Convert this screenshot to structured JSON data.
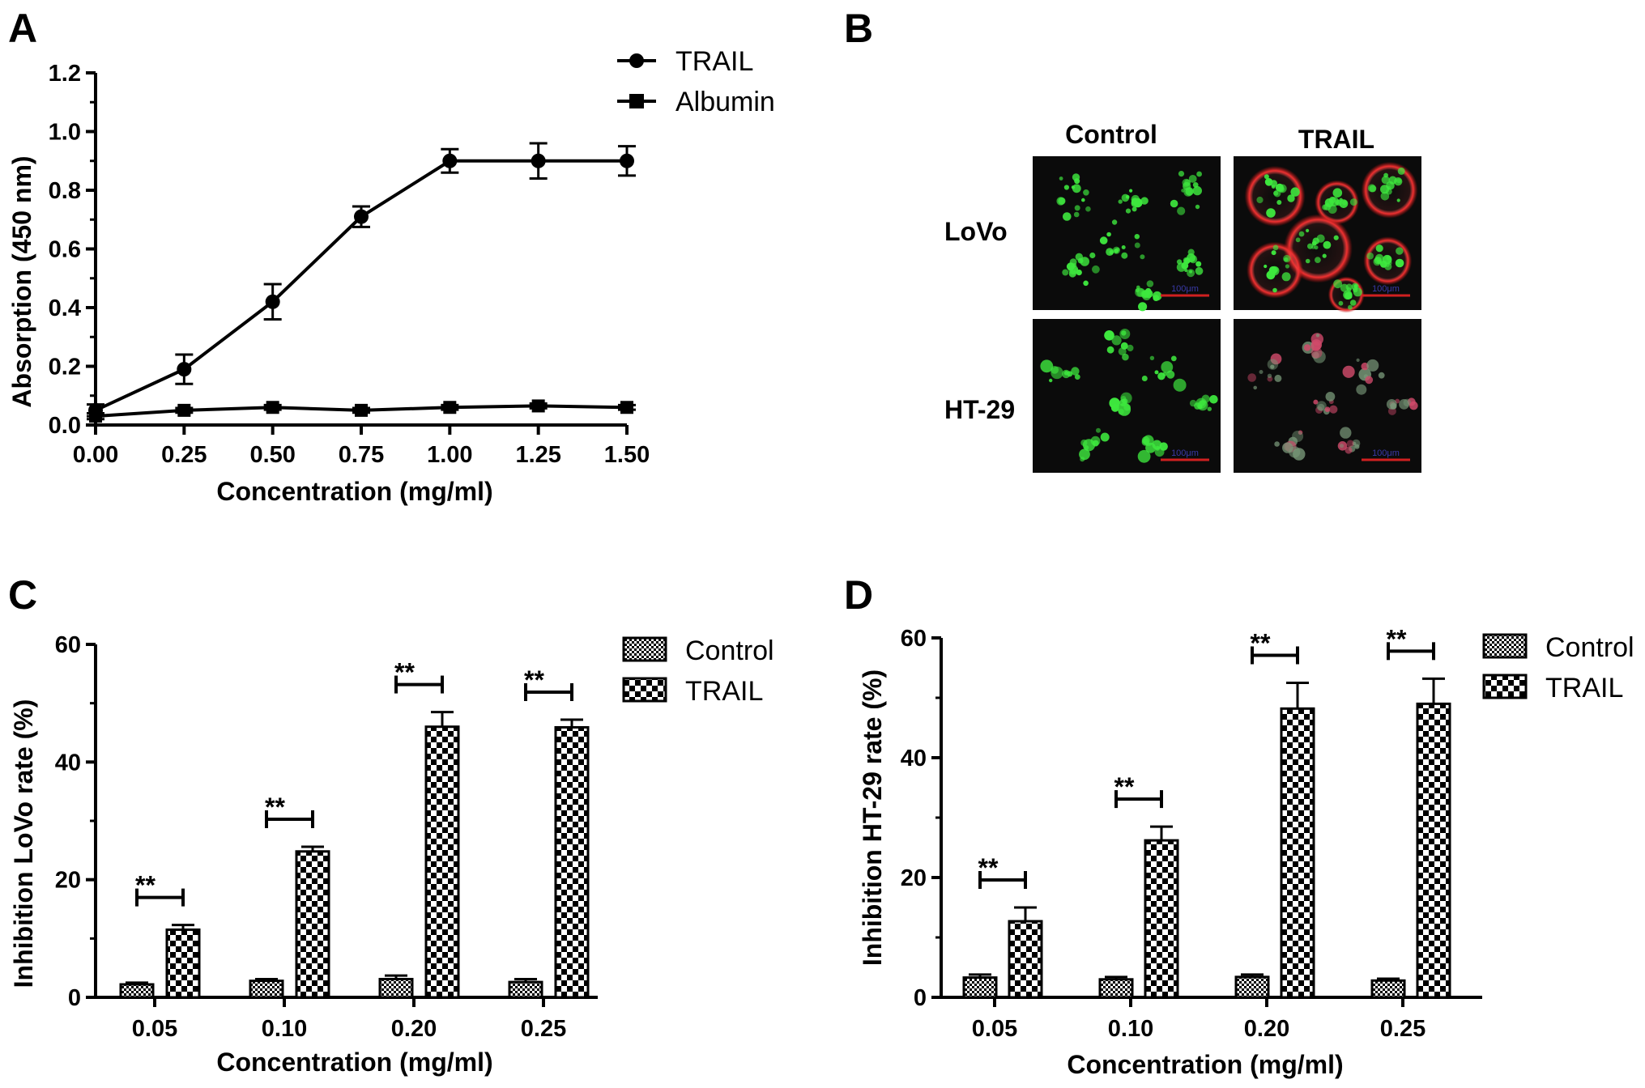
{
  "chart_data": [
    {
      "panel": "A",
      "type": "line",
      "xlabel": "Concentration (mg/ml)",
      "ylabel": "Absorption (450 nm)",
      "x": [
        0,
        0.25,
        0.5,
        0.75,
        1.0,
        1.25,
        1.5
      ],
      "xticks": [
        "0.00",
        "0.25",
        "0.50",
        "0.75",
        "1.00",
        "1.25",
        "1.50"
      ],
      "yticks": [
        "0.0",
        "0.2",
        "0.4",
        "0.6",
        "0.8",
        "1.0",
        "1.2"
      ],
      "xlim": [
        0,
        1.5
      ],
      "ylim": [
        0,
        1.2
      ],
      "grid": false,
      "legend_position": "top-right",
      "series": [
        {
          "name": "TRAIL",
          "marker": "circle",
          "values": [
            0.05,
            0.19,
            0.42,
            0.71,
            0.9,
            0.9,
            0.9
          ],
          "errors": [
            0.02,
            0.05,
            0.06,
            0.035,
            0.04,
            0.06,
            0.05
          ]
        },
        {
          "name": "Albumin",
          "marker": "square",
          "values": [
            0.03,
            0.05,
            0.06,
            0.05,
            0.06,
            0.065,
            0.06
          ],
          "errors": [
            0.01,
            0.008,
            0.008,
            0.008,
            0.008,
            0.008,
            0.008
          ]
        }
      ]
    },
    {
      "panel": "B",
      "type": "image-grid",
      "columns": [
        "Control",
        "TRAIL"
      ],
      "rows": [
        "LoVo",
        "HT-29"
      ],
      "scale_bar": "100μm"
    },
    {
      "panel": "C",
      "type": "bar",
      "xlabel": "Concentration (mg/ml)",
      "ylabel": "Inhibition LoVo rate (%)",
      "categories": [
        "0.05",
        "0.10",
        "0.20",
        "0.25"
      ],
      "yticks": [
        "0",
        "20",
        "40",
        "60"
      ],
      "ylim": [
        0,
        60
      ],
      "legend_position": "top-right",
      "significance": "**",
      "series": [
        {
          "name": "Control",
          "values": [
            2.2,
            2.8,
            3.1,
            2.6
          ],
          "errors": [
            0.3,
            0.3,
            0.6,
            0.5
          ]
        },
        {
          "name": "TRAIL",
          "values": [
            11.5,
            24.8,
            46.0,
            45.9
          ],
          "errors": [
            0.8,
            0.8,
            2.5,
            1.3
          ]
        }
      ]
    },
    {
      "panel": "D",
      "type": "bar",
      "xlabel": "Concentration (mg/ml)",
      "ylabel": "Inhibition HT-29 rate (%)",
      "categories": [
        "0.05",
        "0.10",
        "0.20",
        "0.25"
      ],
      "yticks": [
        "0",
        "20",
        "40",
        "60"
      ],
      "ylim": [
        0,
        60
      ],
      "legend_position": "top-right",
      "significance": "**",
      "series": [
        {
          "name": "Control",
          "values": [
            3.3,
            3.0,
            3.4,
            2.8
          ],
          "errors": [
            0.5,
            0.4,
            0.4,
            0.3
          ]
        },
        {
          "name": "TRAIL",
          "values": [
            12.7,
            26.2,
            48.2,
            49.0
          ],
          "errors": [
            2.3,
            2.3,
            4.3,
            4.2
          ]
        }
      ]
    }
  ],
  "colors": {
    "ink": "#000000",
    "control_fill": "pattern-fine-check",
    "trail_fill": "pattern-coarse-check",
    "scale_bar": "#d02020"
  }
}
